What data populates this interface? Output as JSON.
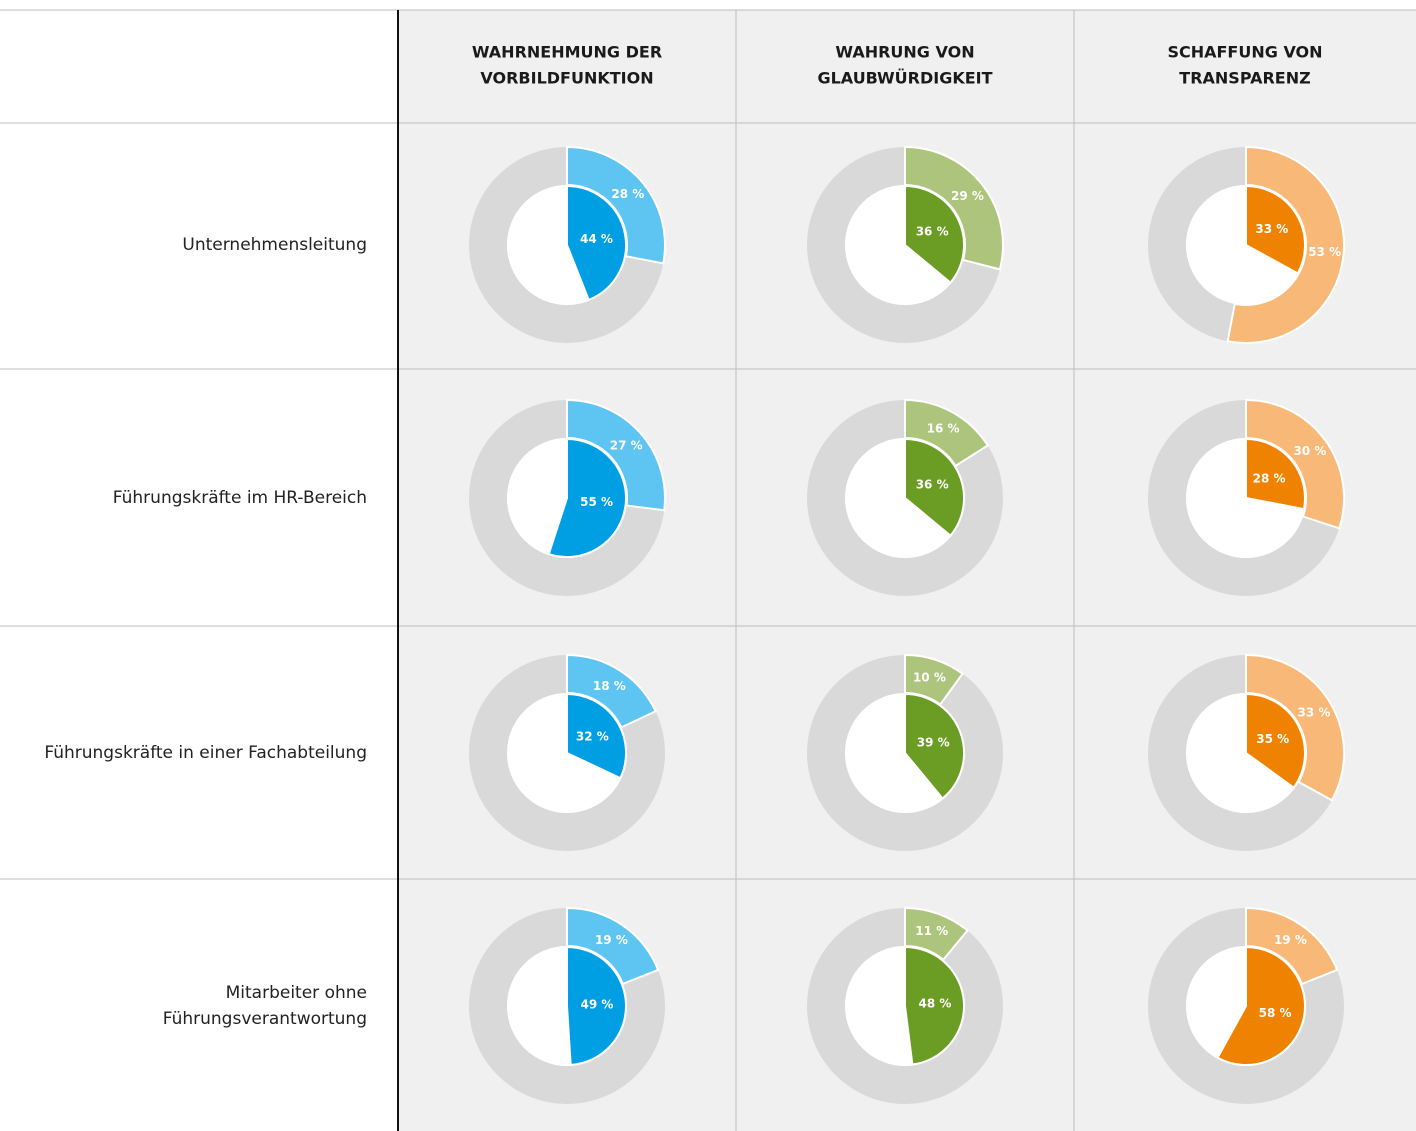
{
  "chart_data": {
    "type": "nested_donut_grid",
    "columns": [
      [
        "WAHRNEHMUNG DER",
        "VORBILDFUNKTION"
      ],
      [
        "WAHRUNG VON",
        "GLAUBWÜRDIGKEIT"
      ],
      [
        "SCHAFFUNG VON",
        "TRANSPARENZ"
      ]
    ],
    "rows": [
      [
        "Unternehmensleitung"
      ],
      [
        "Führungskräfte im HR-Bereich"
      ],
      [
        "Führungskräfte in einer Fachabteilung"
      ],
      [
        "Mitarbeiter ohne",
        "Führungsverantwortung"
      ]
    ],
    "ring_color": "#d9d9d9",
    "series": [
      {
        "inner_color": "#009fe3",
        "outer_color": "#5ec5f2",
        "inner": [
          44,
          55,
          32,
          49
        ],
        "inner_labels": [
          "44 %",
          "55 %",
          "32 %",
          "49 %"
        ],
        "outer": [
          28,
          27,
          18,
          19
        ],
        "outer_labels": [
          "28 %",
          "27 %",
          "18 %",
          "19 %"
        ]
      },
      {
        "inner_color": "#6b9c23",
        "outer_color": "#acc47b",
        "inner": [
          36,
          36,
          39,
          48
        ],
        "inner_labels": [
          "36 %",
          "36 %",
          "39 %",
          "48 %"
        ],
        "outer": [
          29,
          16,
          10,
          11
        ],
        "outer_labels": [
          "29 %",
          "16 %",
          "10 %",
          "11 %"
        ]
      },
      {
        "inner_color": "#ef8200",
        "outer_color": "#f8b877",
        "inner": [
          33,
          28,
          35,
          58
        ],
        "inner_labels": [
          "33 %",
          "28 %",
          "35 %",
          "58 %"
        ],
        "outer": [
          53,
          30,
          33,
          19
        ],
        "outer_labels": [
          "53 %",
          "30 %",
          "33 %",
          "19 %"
        ]
      }
    ]
  }
}
